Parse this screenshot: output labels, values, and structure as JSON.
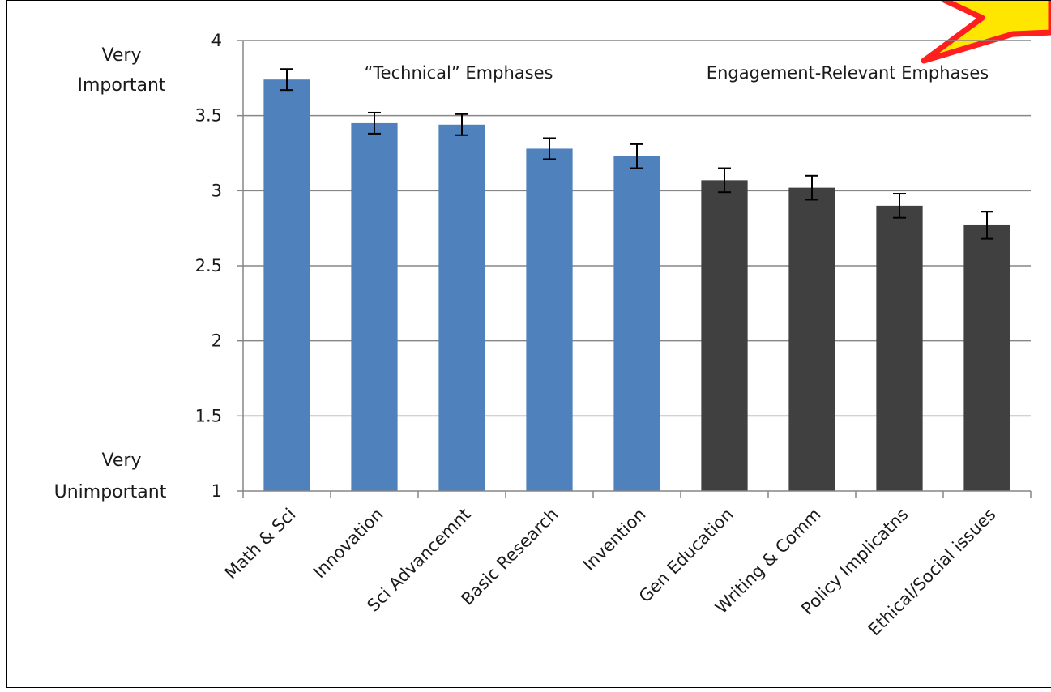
{
  "chart_data": {
    "type": "bar",
    "categories": [
      "Math & Sci",
      "Innovation",
      "Sci Advancemnt",
      "Basic Research",
      "Invention",
      "Gen Education",
      "Writing & Comm",
      "Policy Implicatns",
      "Ethical/Social issues"
    ],
    "values": [
      3.74,
      3.45,
      3.44,
      3.28,
      3.23,
      3.07,
      3.02,
      2.9,
      2.77
    ],
    "error": [
      0.07,
      0.07,
      0.07,
      0.07,
      0.08,
      0.08,
      0.08,
      0.08,
      0.09
    ],
    "groups": [
      {
        "label": "“Technical” Emphases",
        "color": "#4f81bd",
        "count": 5
      },
      {
        "label": "Engagement-Relevant Emphases",
        "color": "#404040",
        "count": 4
      }
    ],
    "ylim": [
      1,
      4
    ],
    "yticks": [
      "1",
      "1.5",
      "2",
      "2.5",
      "3",
      "3.5",
      "4"
    ],
    "y_top_label": [
      "Very",
      "Important"
    ],
    "y_bottom_label": [
      "Very",
      "Unimportant"
    ],
    "grid": true,
    "legend": "none",
    "callout_color": "#ff1f1f",
    "callout_fill": "#ffe600"
  }
}
